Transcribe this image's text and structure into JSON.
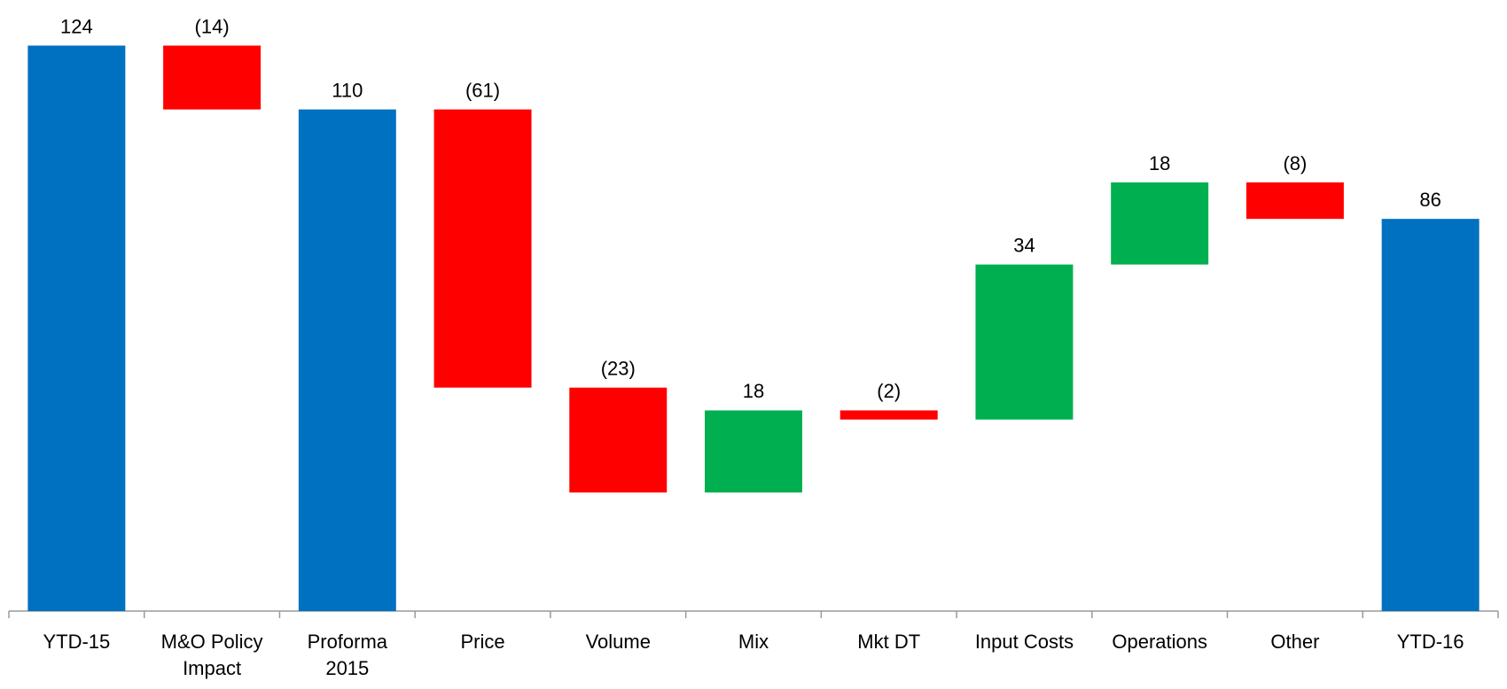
{
  "chart_data": {
    "type": "waterfall",
    "categories": [
      "YTD-15",
      "M&O Policy Impact",
      "Proforma 2015",
      "Price",
      "Volume",
      "Mix",
      "Mkt DT",
      "Input Costs",
      "Operations",
      "Other",
      "YTD-16"
    ],
    "values": [
      124,
      -14,
      110,
      -61,
      -23,
      18,
      -2,
      34,
      18,
      -8,
      86
    ],
    "value_labels": [
      "124",
      "(14)",
      "110",
      "(61)",
      "(23)",
      "18",
      "(2)",
      "34",
      "18",
      "(8)",
      "86"
    ],
    "is_total": [
      true,
      false,
      true,
      false,
      false,
      false,
      false,
      false,
      false,
      false,
      true
    ],
    "total_color": "#0070c0",
    "increase_color": "#00b050",
    "decrease_color": "#ff0000",
    "ylim": [
      0,
      134
    ]
  }
}
